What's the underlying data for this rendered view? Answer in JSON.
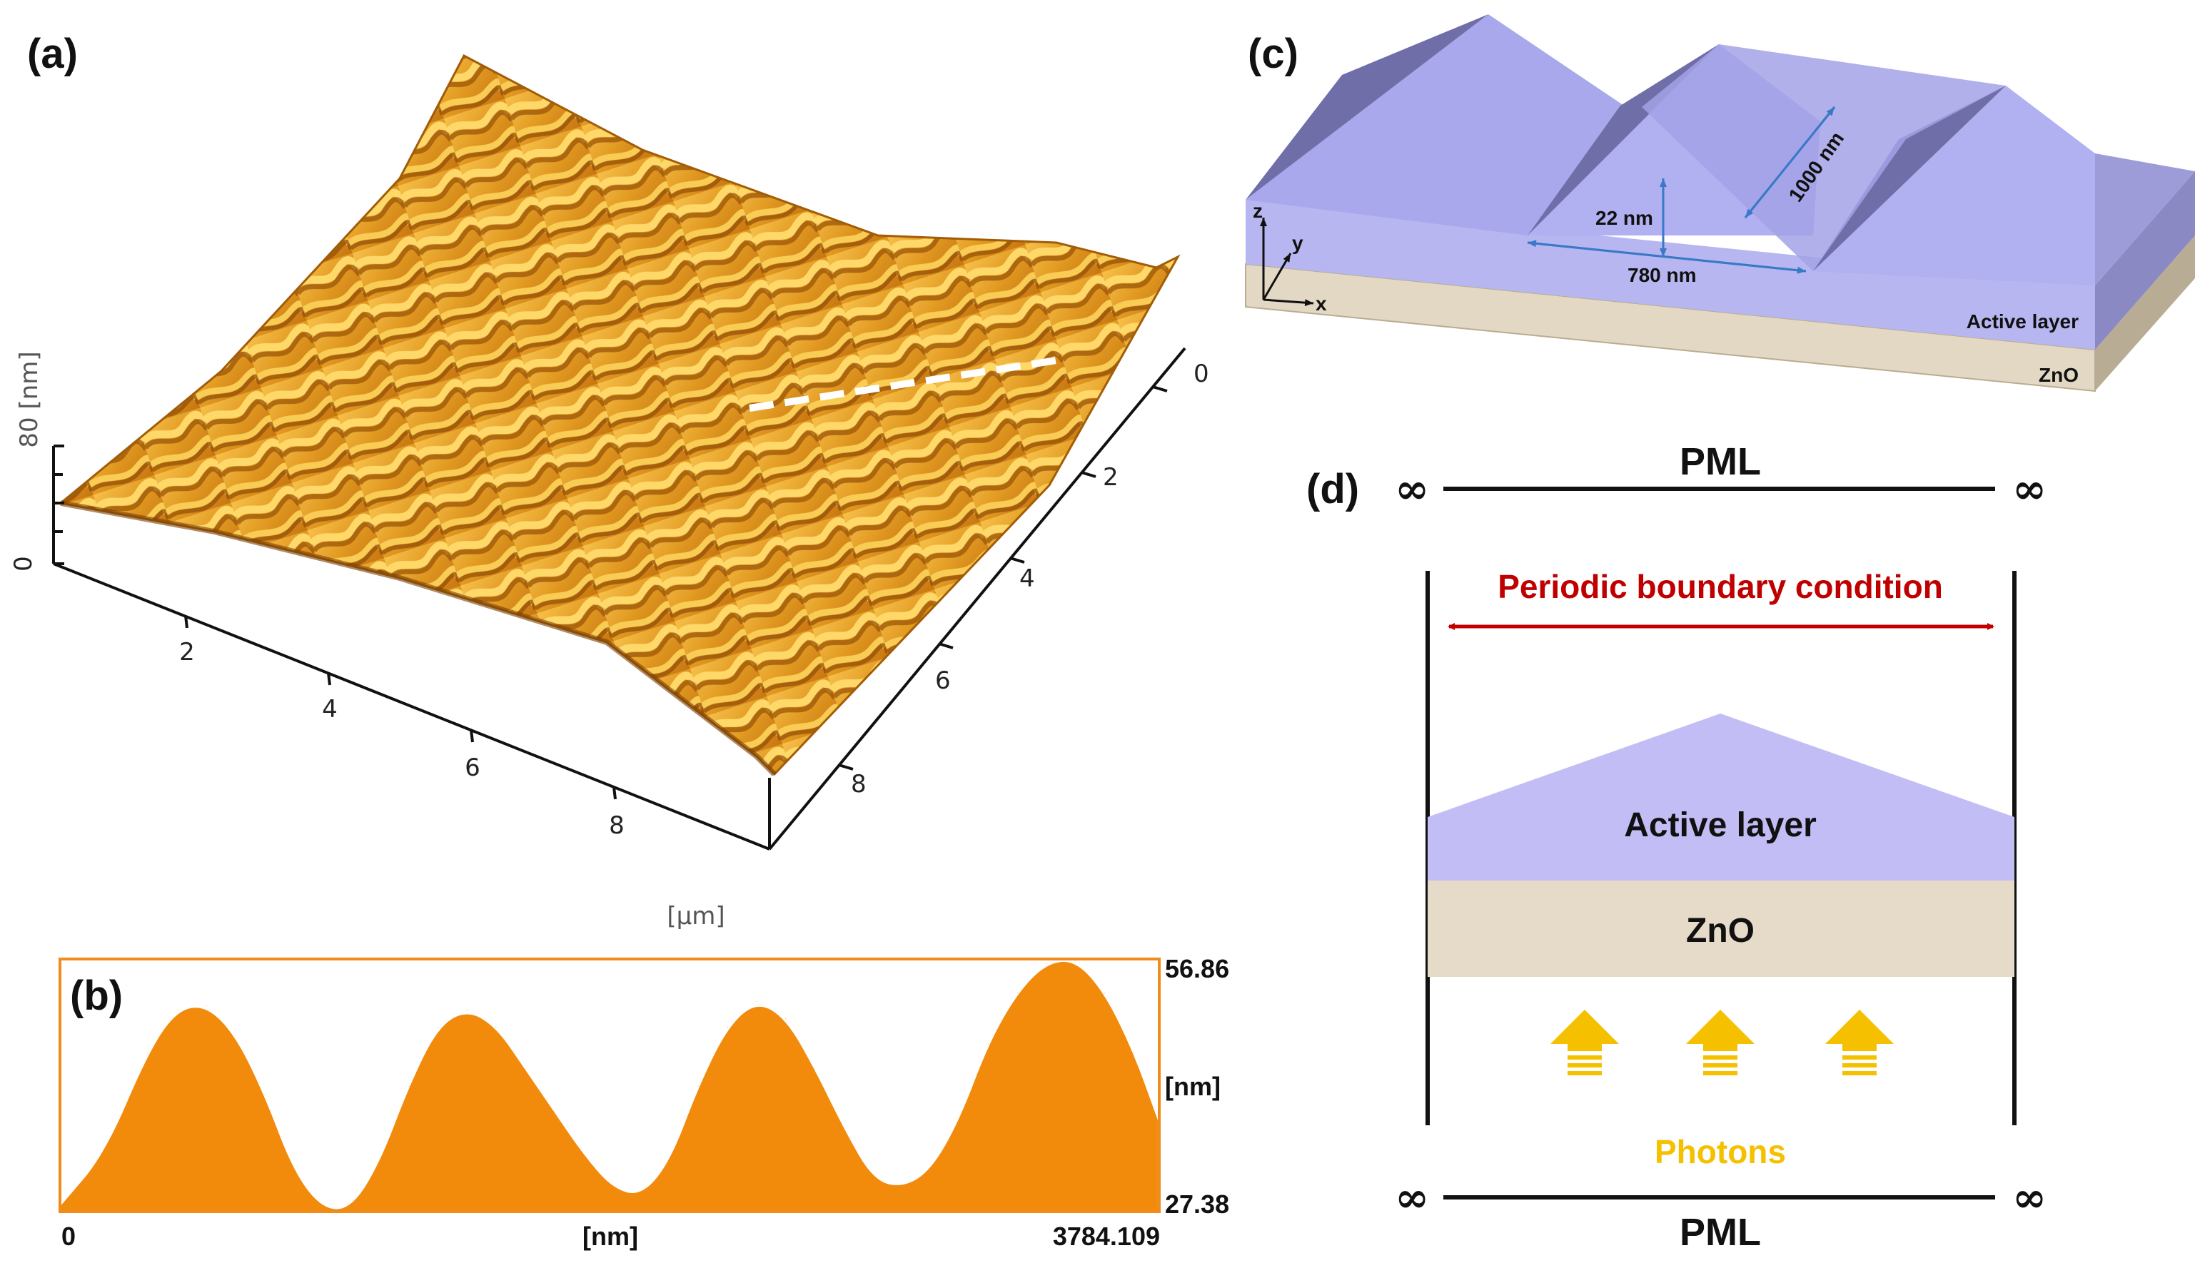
{
  "panel_a": {
    "label": "(a)",
    "z_axis_label": "80 [nm]",
    "z_ticks": [
      "0",
      "80"
    ],
    "x_ticks": [
      "2",
      "4",
      "6",
      "8"
    ],
    "y_ticks": [
      "0",
      "2",
      "4",
      "6",
      "8"
    ],
    "unit": "[µm]",
    "colors": {
      "surface_light": "#f2b53a",
      "surface_mid": "#d98b14",
      "surface_dark": "#8a4c05",
      "profile_line": "#ffffff"
    }
  },
  "panel_b": {
    "label": "(b)",
    "y_max": "56.86",
    "y_min": "27.38",
    "y_unit": "[nm]",
    "x_start": "0",
    "x_end": "3784.109",
    "x_unit": "[nm]",
    "fill_color": "#f28a0c",
    "frame_color": "#f08c1a"
  },
  "panel_c": {
    "label": "(c)",
    "dim_height": "22 nm",
    "dim_period": "780 nm",
    "dim_length": "1000 nm",
    "axis_x": "x",
    "axis_y": "y",
    "axis_z": "z",
    "layer_active": "Active layer",
    "layer_zno": "ZnO",
    "colors": {
      "active": "#b7b6f0",
      "active_dark": "#7d7cb8",
      "zno": "#e3d8c3"
    }
  },
  "panel_d": {
    "label": "(d)",
    "pml_top": "PML",
    "pml_bottom": "PML",
    "infinity": "∞",
    "boundary": "Periodic boundary condition",
    "layer_active": "Active layer",
    "layer_zno": "ZnO",
    "photons": "Photons",
    "colors": {
      "boundary": "#c00000",
      "photons": "#f5c000",
      "active": "#c2bdf5",
      "zno": "#e6dbc8"
    }
  },
  "chart_data": {
    "type": "area",
    "title": "",
    "xlabel": "[nm]",
    "ylabel": "[nm]",
    "xlim": [
      0,
      3784.109
    ],
    "ylim": [
      27.38,
      56.86
    ],
    "x": [
      0,
      150,
      300,
      400,
      500,
      600,
      700,
      800,
      900,
      1000,
      1100,
      1200,
      1300,
      1400,
      1500,
      1600,
      1700,
      1800,
      1900,
      2000,
      2100,
      2200,
      2300,
      2400,
      2500,
      2600,
      2700,
      2800,
      2900,
      3000,
      3100,
      3200,
      3300,
      3400,
      3500,
      3600,
      3700,
      3784
    ],
    "values": [
      28,
      34,
      46,
      51,
      51.5,
      48,
      41,
      32,
      27.5,
      27.5,
      33,
      42,
      49,
      51,
      49,
      44,
      39,
      34,
      30,
      29,
      33,
      42,
      49,
      52,
      50,
      44,
      37,
      31,
      30,
      32,
      38,
      47,
      53,
      56.5,
      56.86,
      53,
      46,
      38
    ]
  }
}
